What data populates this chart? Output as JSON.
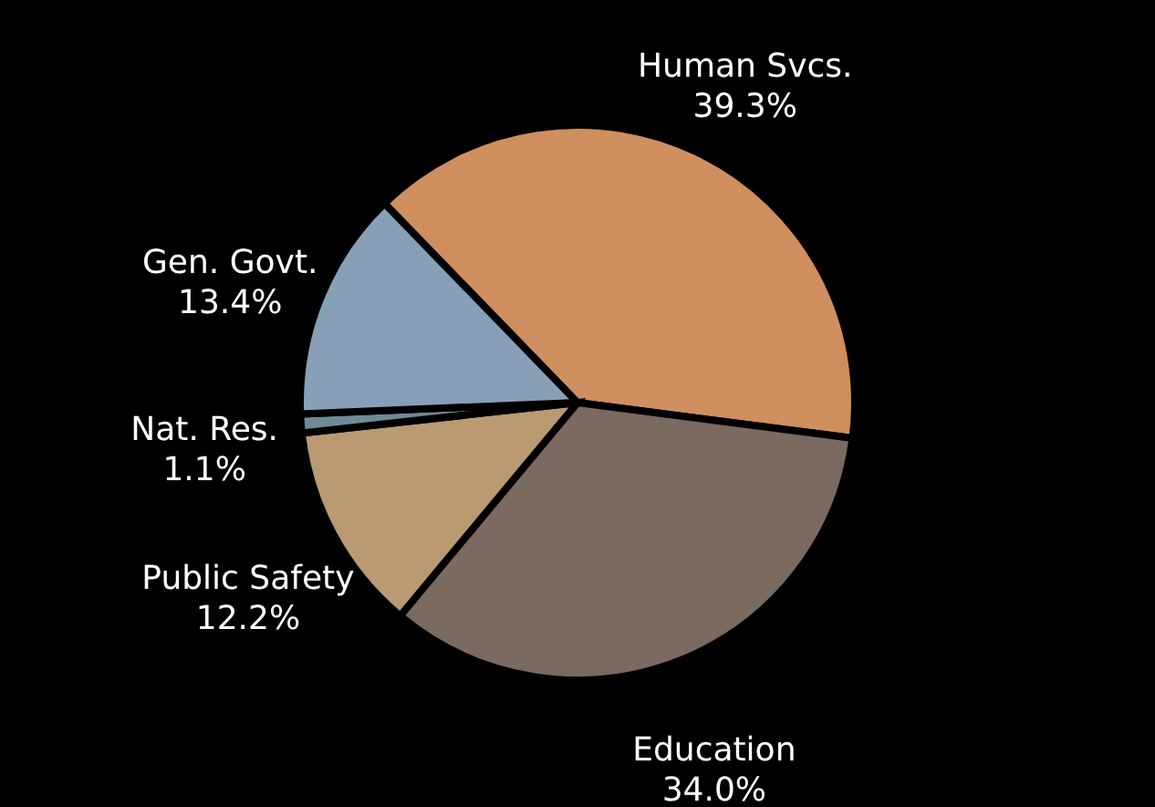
{
  "chart_data": {
    "type": "pie",
    "categories": [
      "Human Svcs.",
      "Education",
      "Public Safety",
      "Nat. Res.",
      "Gen. Govt."
    ],
    "values": [
      39.3,
      34.0,
      12.2,
      1.1,
      13.4
    ],
    "value_labels": [
      "39.3%",
      "34.0%",
      "12.2%",
      "1.1%",
      "13.4%"
    ],
    "colors": [
      "#cf8f5e",
      "#7b6a5f",
      "#b99a73",
      "#6f8a96",
      "#87a0b7"
    ],
    "legend": false
  }
}
